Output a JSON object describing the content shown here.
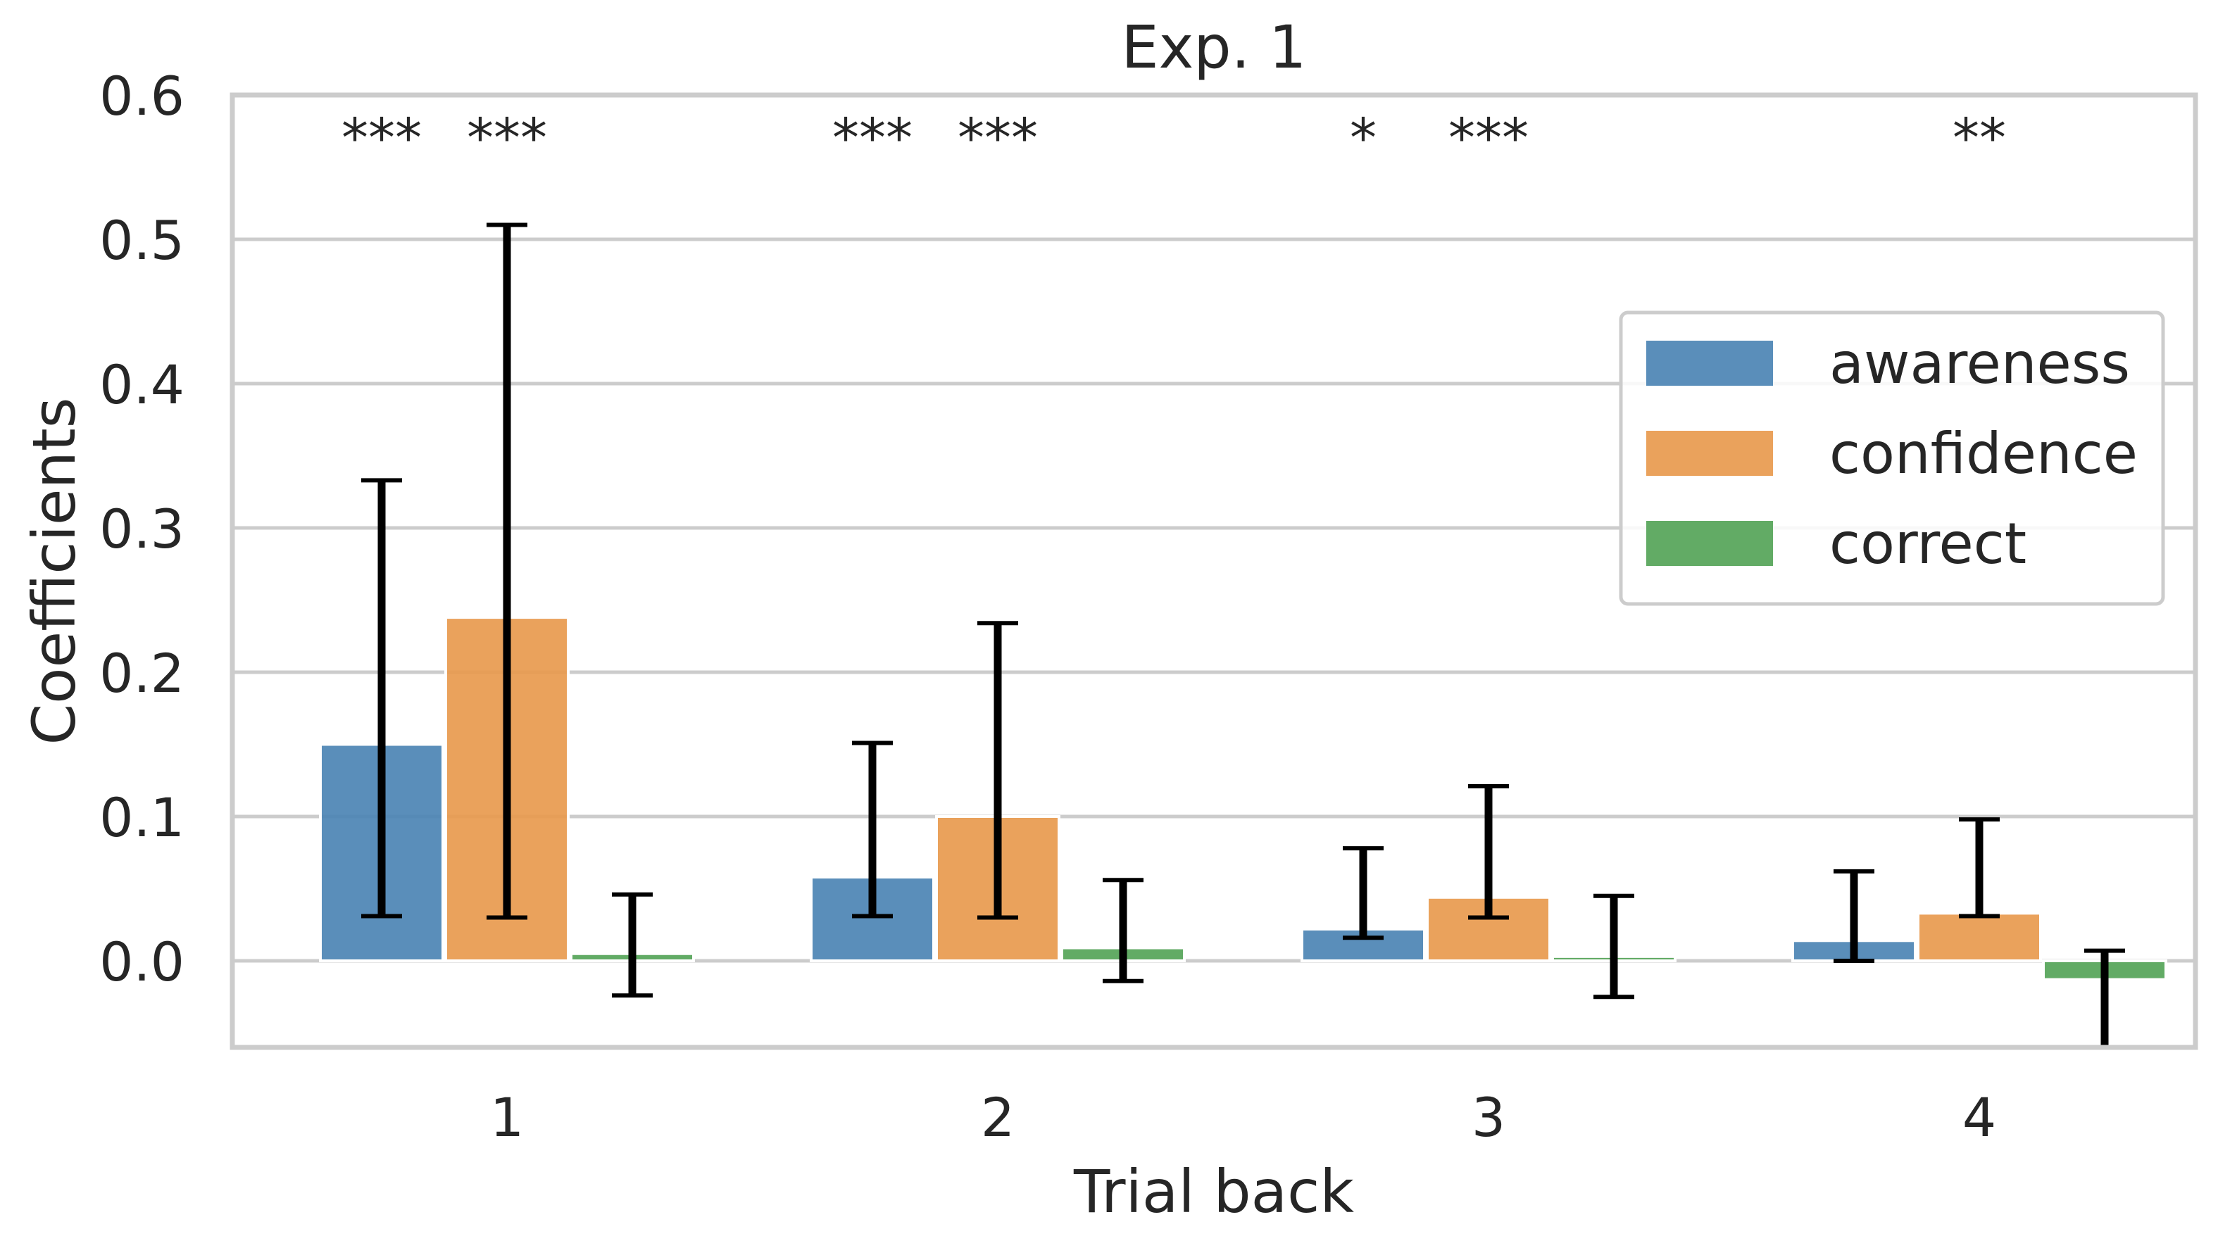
{
  "chart_data": {
    "type": "bar",
    "title": "Exp. 1",
    "xlabel": "Trial back",
    "ylabel": "Coefficients",
    "ylim": [
      -0.06,
      0.6
    ],
    "yticks": [
      "0.0",
      "0.1",
      "0.2",
      "0.3",
      "0.4",
      "0.5",
      "0.6"
    ],
    "categories": [
      "1",
      "2",
      "3",
      "4"
    ],
    "grid": "horizontal",
    "legend_position": "right",
    "series": [
      {
        "name": "awareness",
        "color": "#4C84B4",
        "values": [
          0.15,
          0.058,
          0.022,
          0.014
        ],
        "ci_low": [
          0.031,
          0.031,
          0.016,
          0.0
        ],
        "ci_high": [
          0.333,
          0.151,
          0.078,
          0.062
        ]
      },
      {
        "name": "confidence",
        "color": "#E89A4E",
        "values": [
          0.238,
          0.1,
          0.044,
          0.033
        ],
        "ci_low": [
          0.03,
          0.03,
          0.03,
          0.031
        ],
        "ci_high": [
          0.51,
          0.234,
          0.121,
          0.098
        ]
      },
      {
        "name": "correct",
        "color": "#55A458",
        "values": [
          0.005,
          0.009,
          0.003,
          -0.013
        ],
        "ci_low": [
          -0.024,
          -0.014,
          -0.025,
          -0.06
        ],
        "ci_high": [
          0.046,
          0.056,
          0.045,
          0.007
        ]
      }
    ],
    "significance": [
      {
        "category": "1",
        "series": "awareness",
        "label": "***"
      },
      {
        "category": "1",
        "series": "confidence",
        "label": "***"
      },
      {
        "category": "2",
        "series": "awareness",
        "label": "***"
      },
      {
        "category": "2",
        "series": "confidence",
        "label": "***"
      },
      {
        "category": "3",
        "series": "awareness",
        "label": "*"
      },
      {
        "category": "3",
        "series": "confidence",
        "label": "***"
      },
      {
        "category": "4",
        "series": "confidence",
        "label": "**"
      }
    ]
  }
}
